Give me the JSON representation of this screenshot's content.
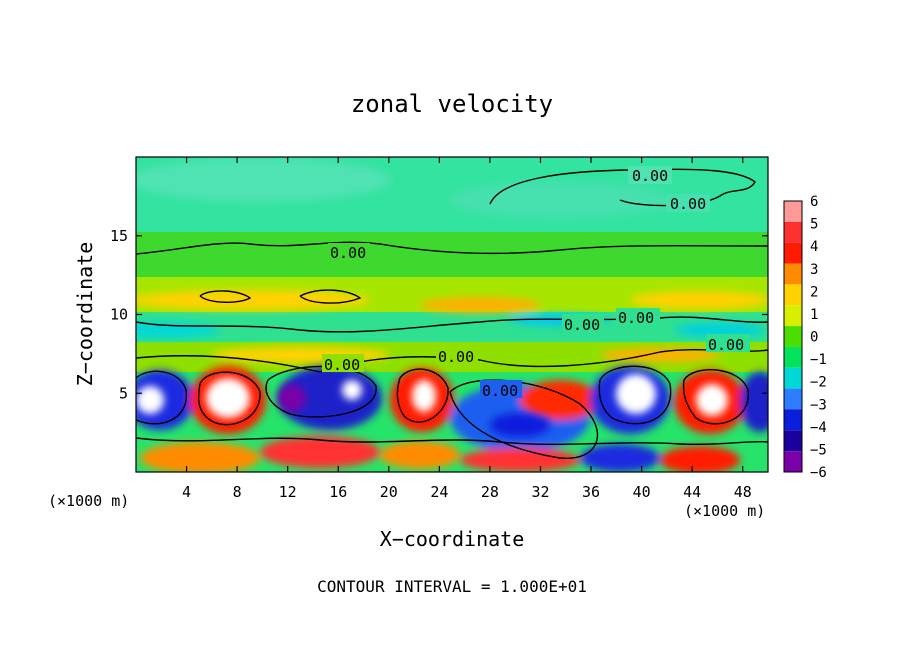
{
  "chart_data": {
    "type": "heatmap",
    "title": "zonal velocity",
    "xlabel": "X−coordinate",
    "ylabel": "Z−coordinate",
    "x_unit_label": "(×1000 m)",
    "x_unit_label_right": "(×1000 m)",
    "xlim": [
      0,
      50
    ],
    "ylim": [
      0,
      20
    ],
    "x_ticks": [
      4,
      8,
      12,
      16,
      20,
      24,
      28,
      32,
      36,
      40,
      44,
      48
    ],
    "y_ticks": [
      5,
      10,
      15
    ],
    "colorbar": {
      "levels": [
        6,
        5,
        4,
        3,
        2,
        1,
        0,
        -1,
        -2,
        -3,
        -4,
        -5,
        -6
      ],
      "labels": [
        "6",
        "5",
        "4",
        "3",
        "2",
        "1",
        "0",
        "−1",
        "−2",
        "−3",
        "−4",
        "−5",
        "−6"
      ],
      "colors": [
        "#ff9a9a",
        "#ff3030",
        "#ff1a00",
        "#ff8c00",
        "#ffd200",
        "#d8f000",
        "#4bde00",
        "#00e35a",
        "#00d8d8",
        "#2e7dff",
        "#0a1fdc",
        "#1a009c",
        "#7a00a8"
      ]
    },
    "contour_labels": [
      "0.00",
      "0.00",
      "0.00",
      "0.00",
      "0.00",
      "0.00",
      "0.00",
      "0.00",
      "0.00"
    ],
    "footer": "CONTOUR INTERVAL = 1.000E+01"
  }
}
